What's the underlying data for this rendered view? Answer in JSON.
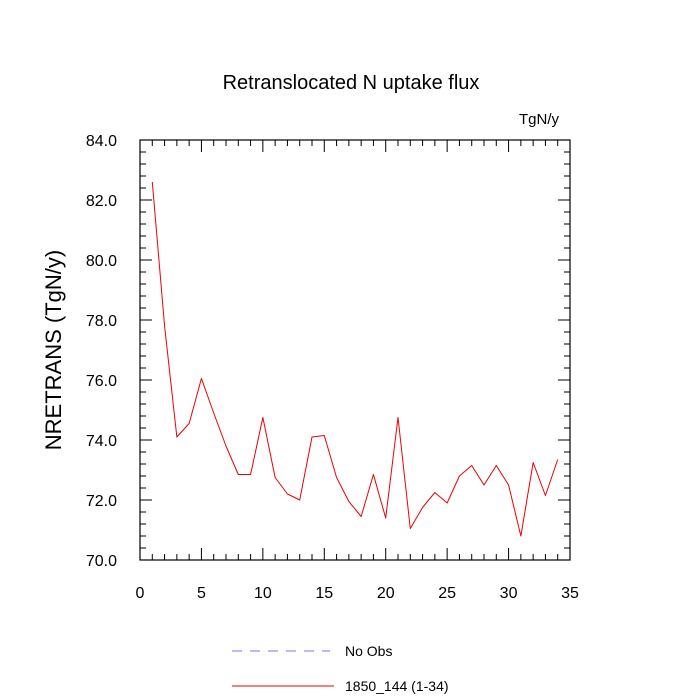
{
  "chart_data": {
    "type": "line",
    "title": "Retranslocated N uptake flux",
    "units": "TgN/y",
    "xlabel": "",
    "ylabel": "NRETRANS  (TgN/y)",
    "xlim": [
      0,
      35
    ],
    "ylim": [
      70.0,
      84.0
    ],
    "x_ticks": [
      0,
      5,
      10,
      15,
      20,
      25,
      30,
      35
    ],
    "x_tick_labels": [
      "0",
      "5",
      "10",
      "15",
      "20",
      "25",
      "30",
      "35"
    ],
    "y_ticks": [
      70.0,
      72.0,
      74.0,
      76.0,
      78.0,
      80.0,
      82.0,
      84.0
    ],
    "y_tick_labels": [
      "70.0",
      "72.0",
      "74.0",
      "76.0",
      "78.0",
      "80.0",
      "82.0",
      "84.0"
    ],
    "grid": false,
    "legend_position": "bottom",
    "series": [
      {
        "name": "No Obs",
        "color": "#7777ee",
        "style": "dashed",
        "x": [],
        "y": []
      },
      {
        "name": "1850_144 (1-34)",
        "color": "#ee0000",
        "style": "solid",
        "x": [
          1,
          2,
          3,
          4,
          5,
          6,
          7,
          8,
          9,
          10,
          11,
          12,
          13,
          14,
          15,
          16,
          17,
          18,
          19,
          20,
          21,
          22,
          23,
          24,
          25,
          26,
          27,
          28,
          29,
          30,
          31,
          32,
          33,
          34
        ],
        "y": [
          82.6,
          77.8,
          74.1,
          74.55,
          76.05,
          74.9,
          73.8,
          72.85,
          72.85,
          74.75,
          72.75,
          72.2,
          72.0,
          74.1,
          74.15,
          72.75,
          71.95,
          71.45,
          72.85,
          71.4,
          74.75,
          71.05,
          71.75,
          72.25,
          71.9,
          72.8,
          73.15,
          72.5,
          73.15,
          72.5,
          70.8,
          73.25,
          72.15,
          73.35
        ]
      }
    ]
  }
}
